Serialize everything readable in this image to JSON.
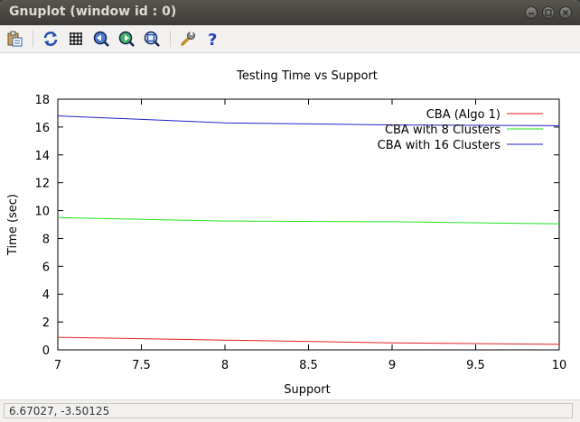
{
  "window": {
    "title": "Gnuplot (window id : 0)"
  },
  "toolbar": {
    "buttons": [
      {
        "icon": "copy-clipboard-icon"
      },
      {
        "icon": "replot-icon"
      },
      {
        "icon": "grid-icon"
      },
      {
        "icon": "zoom-previous-icon"
      },
      {
        "icon": "zoom-next-icon"
      },
      {
        "icon": "zoom-autoscale-icon"
      },
      {
        "icon": "configure-wrench-icon"
      },
      {
        "icon": "help-icon"
      }
    ]
  },
  "status": {
    "coordinates": "6.67027, -3.50125"
  },
  "chart_data": {
    "type": "line",
    "title": "Testing Time vs Support",
    "xlabel": "Support",
    "ylabel": "Time (sec)",
    "xlim": [
      7,
      10
    ],
    "ylim": [
      0,
      18
    ],
    "xticks": [
      7,
      7.5,
      8,
      8.5,
      9,
      9.5,
      10
    ],
    "yticks": [
      0,
      2,
      4,
      6,
      8,
      10,
      12,
      14,
      16,
      18
    ],
    "xtick_labels": [
      "7",
      "7.5",
      "8",
      "8.5",
      "9",
      "9.5",
      "10"
    ],
    "ytick_labels": [
      "0",
      "2",
      "4",
      "6",
      "8",
      "10",
      "12",
      "14",
      "16",
      "18"
    ],
    "legend_position": "top-right",
    "grid": false,
    "series": [
      {
        "name": "CBA (Algo 1)",
        "color": "#e02020",
        "x": [
          7,
          8,
          9,
          10
        ],
        "y": [
          0.9,
          0.7,
          0.5,
          0.4
        ]
      },
      {
        "name": "CBA with 8 Clusters",
        "color": "#20e020",
        "x": [
          7,
          8,
          9,
          10
        ],
        "y": [
          9.5,
          9.25,
          9.2,
          9.05
        ]
      },
      {
        "name": "CBA with 16 Clusters",
        "color": "#2020c8",
        "x": [
          7,
          8,
          9,
          10
        ],
        "y": [
          16.8,
          16.3,
          16.15,
          16.1
        ]
      }
    ]
  }
}
